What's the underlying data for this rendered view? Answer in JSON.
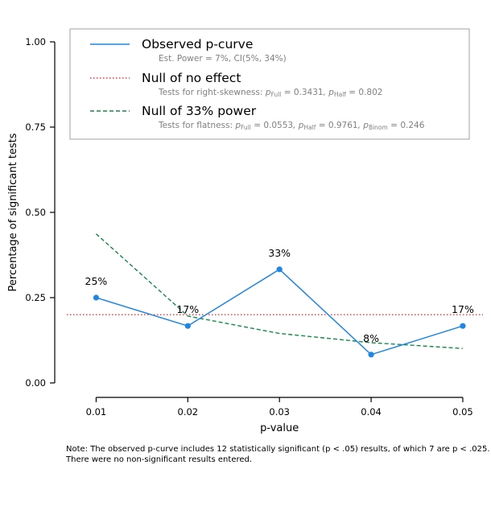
{
  "chart_data": {
    "type": "line",
    "xlabel": "p-value",
    "ylabel": "Percentage of significant tests",
    "x": [
      0.01,
      0.02,
      0.03,
      0.04,
      0.05
    ],
    "x_tick_labels": [
      "0.01",
      "0.02",
      "0.03",
      "0.04",
      "0.05"
    ],
    "y_ticks": [
      0.0,
      0.25,
      0.5,
      0.75,
      1.0
    ],
    "y_tick_labels": [
      "0.00",
      "0.25",
      "0.50",
      "0.75",
      "1.00"
    ],
    "xlim": [
      0.0068,
      0.0522
    ],
    "ylim": [
      0.0,
      1.0
    ],
    "series": [
      {
        "name": "Observed p-curve",
        "style": "solid",
        "markers": true,
        "color": "#1f86e3",
        "values": [
          0.25,
          0.167,
          0.333,
          0.083,
          0.167
        ],
        "labels": [
          "25%",
          "17%",
          "33%",
          "8%",
          "17%"
        ],
        "legend_note": "Est. Power = 7%, CI(5%, 34%)"
      },
      {
        "name": "Null of no effect",
        "style": "dotted",
        "color": "#e8333a",
        "values": [
          0.2,
          0.2,
          0.2,
          0.2,
          0.2
        ],
        "legend_note_prefix": "Tests for right-skewness: ",
        "legend_note_stats": [
          {
            "sub": "Full",
            "value": "0.3431"
          },
          {
            "sub": "Half",
            "value": "0.802"
          }
        ]
      },
      {
        "name": "Null of 33% power",
        "style": "dashed",
        "color": "#128a4a",
        "values": [
          0.437,
          0.196,
          0.145,
          0.118,
          0.101
        ],
        "legend_note_prefix": "Tests for flatness: ",
        "legend_note_stats": [
          {
            "sub": "Full",
            "value": "0.0553"
          },
          {
            "sub": "Half",
            "value": "0.9761"
          },
          {
            "sub": "Binom",
            "value": "0.246"
          }
        ]
      }
    ],
    "legend_position": "top"
  },
  "note": {
    "line1": "Note: The observed p-curve includes 12 statistically significant (p < .05) results, of which 7 are p < .025.",
    "line2": "There were no non-significant results entered."
  }
}
